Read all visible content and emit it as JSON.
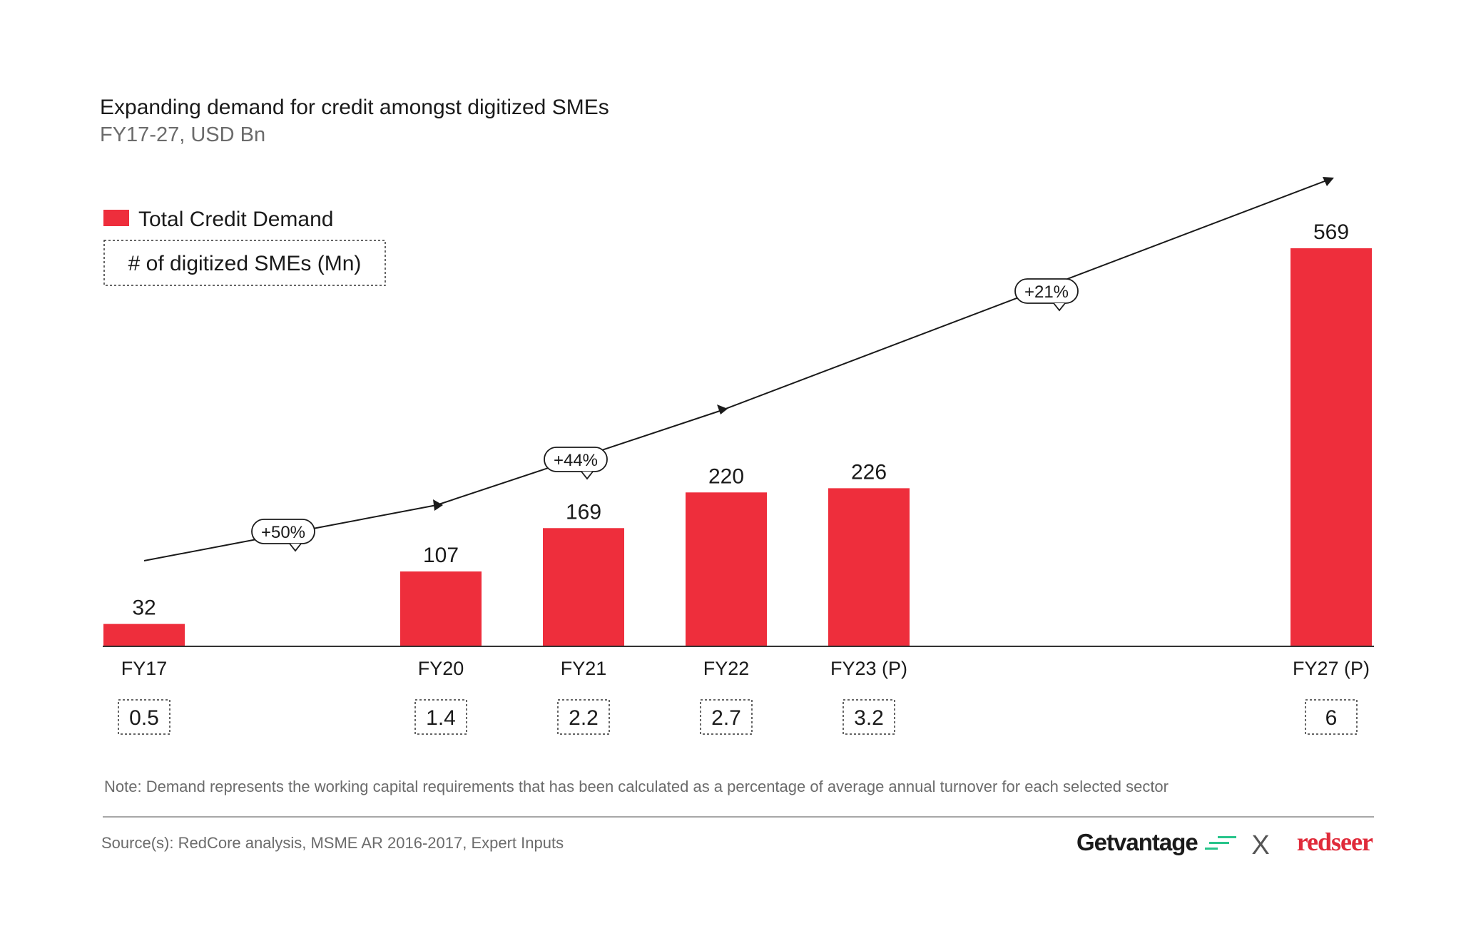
{
  "chart_data": {
    "type": "bar",
    "title": "Expanding demand for credit amongst digitized SMEs",
    "subtitle": "FY17-27, USD Bn",
    "categories": [
      "FY17",
      "FY20",
      "FY21",
      "FY22",
      "FY23 (P)",
      "FY27 (P)"
    ],
    "series": [
      {
        "name": "Total Credit Demand",
        "values": [
          32,
          107,
          169,
          220,
          226,
          569
        ]
      }
    ],
    "secondary_row": {
      "name": "# of digitized SMEs (Mn)",
      "values": [
        "0.5",
        "1.4",
        "2.2",
        "2.7",
        "3.2",
        "6"
      ]
    },
    "growth_annotations": [
      "+50%",
      "+44%",
      "+21%"
    ],
    "xlabel": "",
    "ylabel": "",
    "ylim": [
      0,
      569
    ],
    "grid": false,
    "legend_position": "top-left"
  },
  "note": "Note: Demand represents the working capital requirements that has been calculated as a percentage of average annual turnover for each selected sector",
  "source": "Source(s): RedCore analysis, MSME AR 2016-2017, Expert Inputs",
  "logos": {
    "left": "Getvantage",
    "separator": "X",
    "right": "redseer"
  },
  "colors": {
    "bar": "#ee2e3c",
    "text": "#1a1a1a",
    "muted": "#6b6b6b",
    "brand_red": "#e02b3a",
    "gv_accent": "#27c48a"
  }
}
